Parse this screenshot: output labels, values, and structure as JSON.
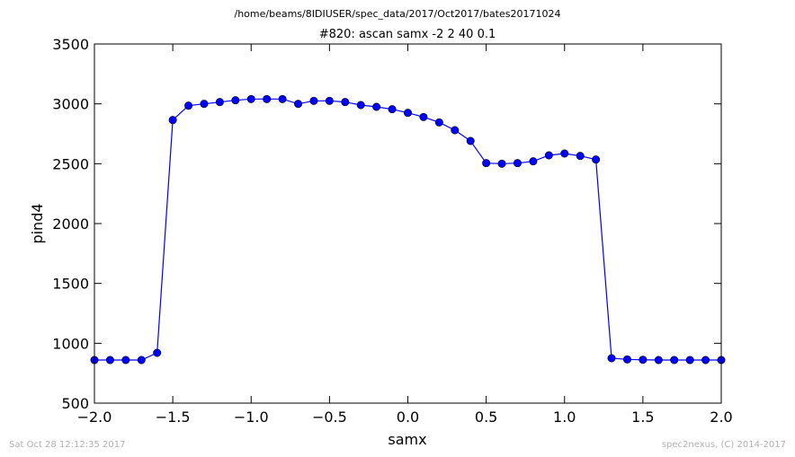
{
  "suptitle": "/home/beams/8IDIUSER/spec_data/2017/Oct2017/bates20171024",
  "footer": {
    "timestamp": "Sat Oct 28 12:12:35 2017",
    "credit": "spec2nexus, (C) 2014-2017"
  },
  "chart_data": {
    "type": "line",
    "title": "#820: ascan  samx -2 2  40 0.1",
    "xlabel": "samx",
    "ylabel": "pind4",
    "xlim": [
      -2.0,
      2.0
    ],
    "ylim": [
      500,
      3500
    ],
    "xticks": [
      -2.0,
      -1.5,
      -1.0,
      -0.5,
      0.0,
      0.5,
      1.0,
      1.5,
      2.0
    ],
    "xtick_labels": [
      "−2.0",
      "−1.5",
      "−1.0",
      "−0.5",
      "0.0",
      "0.5",
      "1.0",
      "1.5",
      "2.0"
    ],
    "yticks": [
      500,
      1000,
      1500,
      2000,
      2500,
      3000,
      3500
    ],
    "ytick_labels": [
      "500",
      "1000",
      "1500",
      "2000",
      "2500",
      "3000",
      "3500"
    ],
    "grid": false,
    "color": "#0000ff",
    "series": [
      {
        "x": [
          -2.0,
          -1.9,
          -1.8,
          -1.7,
          -1.6,
          -1.5,
          -1.4,
          -1.3,
          -1.2,
          -1.1,
          -1.0,
          -0.9,
          -0.8,
          -0.7,
          -0.6,
          -0.5,
          -0.4,
          -0.3,
          -0.2,
          -0.1,
          0.0,
          0.1,
          0.2,
          0.3,
          0.4,
          0.5,
          0.6,
          0.7,
          0.8,
          0.9,
          1.0,
          1.1,
          1.2,
          1.3,
          1.4,
          1.5,
          1.6,
          1.7,
          1.8,
          1.9,
          2.0
        ],
        "y": [
          860,
          860,
          860,
          860,
          920,
          2865,
          2985,
          3000,
          3015,
          3030,
          3040,
          3040,
          3040,
          3000,
          3025,
          3025,
          3015,
          2990,
          2975,
          2955,
          2925,
          2890,
          2845,
          2780,
          2690,
          2505,
          2500,
          2505,
          2520,
          2570,
          2585,
          2565,
          2535,
          875,
          865,
          862,
          860,
          860,
          860,
          860,
          860
        ]
      }
    ]
  }
}
